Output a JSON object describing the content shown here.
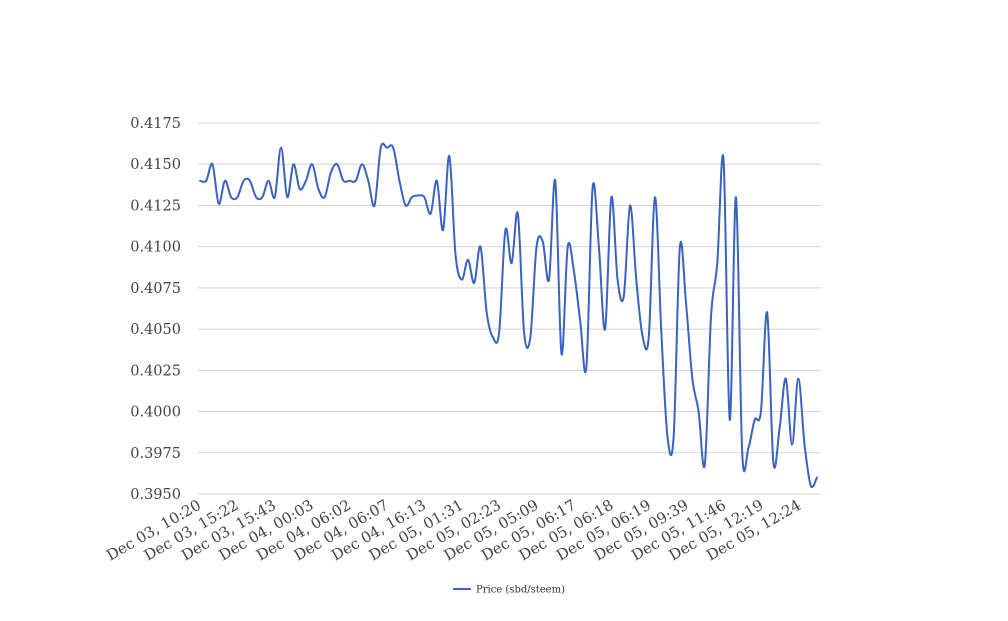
{
  "chart_data": {
    "type": "line",
    "title": "",
    "xlabel": "",
    "ylabel": "",
    "ylim": [
      0.395,
      0.4175
    ],
    "y_ticks": [
      "0.4175",
      "0.4150",
      "0.4125",
      "0.4100",
      "0.4075",
      "0.4050",
      "0.4025",
      "0.4000",
      "0.3975",
      "0.3950"
    ],
    "x_tick_labels": [
      "Dec 03, 10:20",
      "Dec 03, 15:22",
      "Dec 03, 15:43",
      "Dec 04, 00:03",
      "Dec 04, 06:02",
      "Dec 04, 06:07",
      "Dec 04, 16:13",
      "Dec 05, 01:31",
      "Dec 05, 02:23",
      "Dec 05, 05:09",
      "Dec 05, 06:17",
      "Dec 05, 06:18",
      "Dec 05, 06:19",
      "Dec 05, 09:39",
      "Dec 05, 11:46",
      "Dec 05, 12:19",
      "Dec 05, 12:24"
    ],
    "grid": true,
    "legend_position": "bottom",
    "series": [
      {
        "name": "Price (sbd/steem)",
        "color": "#3a62c0",
        "values": [
          0.414,
          0.414,
          0.415,
          0.4126,
          0.414,
          0.413,
          0.413,
          0.414,
          0.414,
          0.413,
          0.413,
          0.414,
          0.413,
          0.416,
          0.413,
          0.415,
          0.4135,
          0.414,
          0.415,
          0.4135,
          0.413,
          0.4145,
          0.415,
          0.414,
          0.414,
          0.414,
          0.415,
          0.414,
          0.4125,
          0.416,
          0.416,
          0.416,
          0.414,
          0.4125,
          0.413,
          0.4131,
          0.413,
          0.412,
          0.414,
          0.411,
          0.4155,
          0.4095,
          0.408,
          0.4092,
          0.4078,
          0.41,
          0.406,
          0.4045,
          0.4048,
          0.411,
          0.409,
          0.412,
          0.4048,
          0.4045,
          0.41,
          0.4103,
          0.408,
          0.414,
          0.4035,
          0.41,
          0.4085,
          0.4055,
          0.4027,
          0.4136,
          0.41,
          0.405,
          0.413,
          0.408,
          0.407,
          0.4125,
          0.408,
          0.4046,
          0.4045,
          0.413,
          0.405,
          0.3985,
          0.3985,
          0.41,
          0.4065,
          0.402,
          0.4,
          0.3968,
          0.4058,
          0.409,
          0.4153,
          0.3995,
          0.413,
          0.3975,
          0.3978,
          0.3995,
          0.4,
          0.406,
          0.3969,
          0.399,
          0.402,
          0.398,
          0.402,
          0.398,
          0.3955,
          0.396
        ]
      }
    ]
  }
}
